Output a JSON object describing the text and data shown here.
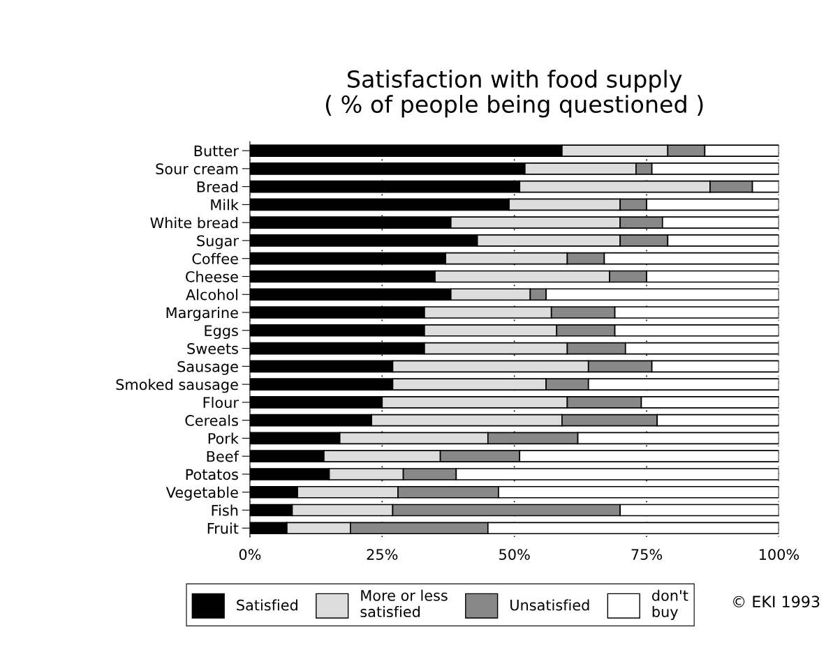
{
  "chart_data": {
    "type": "bar",
    "orientation": "horizontal",
    "stacked": true,
    "title": "Satisfaction with food supply",
    "subtitle": "( % of people being questioned )",
    "categories": [
      "Butter",
      "Sour cream",
      "Bread",
      "Milk",
      "White bread",
      "Sugar",
      "Coffee",
      "Cheese",
      "Alcohol",
      "Margarine",
      "Eggs",
      "Sweets",
      "Sausage",
      "Smoked sausage",
      "Flour",
      "Cereals",
      "Pork",
      "Beef",
      "Potatos",
      "Vegetable",
      "Fish",
      "Fruit"
    ],
    "series": [
      {
        "name": "Satisfied",
        "color": "#000000",
        "values": [
          59,
          52,
          51,
          49,
          38,
          43,
          37,
          35,
          38,
          33,
          33,
          33,
          27,
          27,
          25,
          23,
          17,
          14,
          15,
          9,
          8,
          7
        ]
      },
      {
        "name": "More or less\nsatisfied",
        "color": "#dddddd",
        "values": [
          20,
          21,
          36,
          21,
          32,
          27,
          23,
          33,
          15,
          24,
          25,
          27,
          37,
          29,
          35,
          36,
          28,
          22,
          14,
          19,
          19,
          12
        ]
      },
      {
        "name": "Unsatisfied",
        "color": "#888888",
        "values": [
          7,
          3,
          8,
          5,
          8,
          9,
          7,
          7,
          3,
          12,
          11,
          11,
          12,
          8,
          14,
          18,
          17,
          15,
          10,
          19,
          43,
          26
        ]
      },
      {
        "name": "don't\nbuy",
        "color": "#ffffff",
        "values": [
          14,
          24,
          5,
          25,
          22,
          21,
          33,
          25,
          44,
          31,
          31,
          29,
          24,
          36,
          26,
          23,
          38,
          49,
          61,
          53,
          30,
          55
        ]
      }
    ],
    "xlim": [
      0,
      100
    ],
    "xticks": [
      {
        "value": 0,
        "label": "0%"
      },
      {
        "value": 25,
        "label": "25%"
      },
      {
        "value": 50,
        "label": "50%"
      },
      {
        "value": 75,
        "label": "75%"
      },
      {
        "value": 100,
        "label": "100%"
      }
    ],
    "grid": "x",
    "legend": "bottom",
    "annotations": [
      "© EKI 1993"
    ]
  }
}
